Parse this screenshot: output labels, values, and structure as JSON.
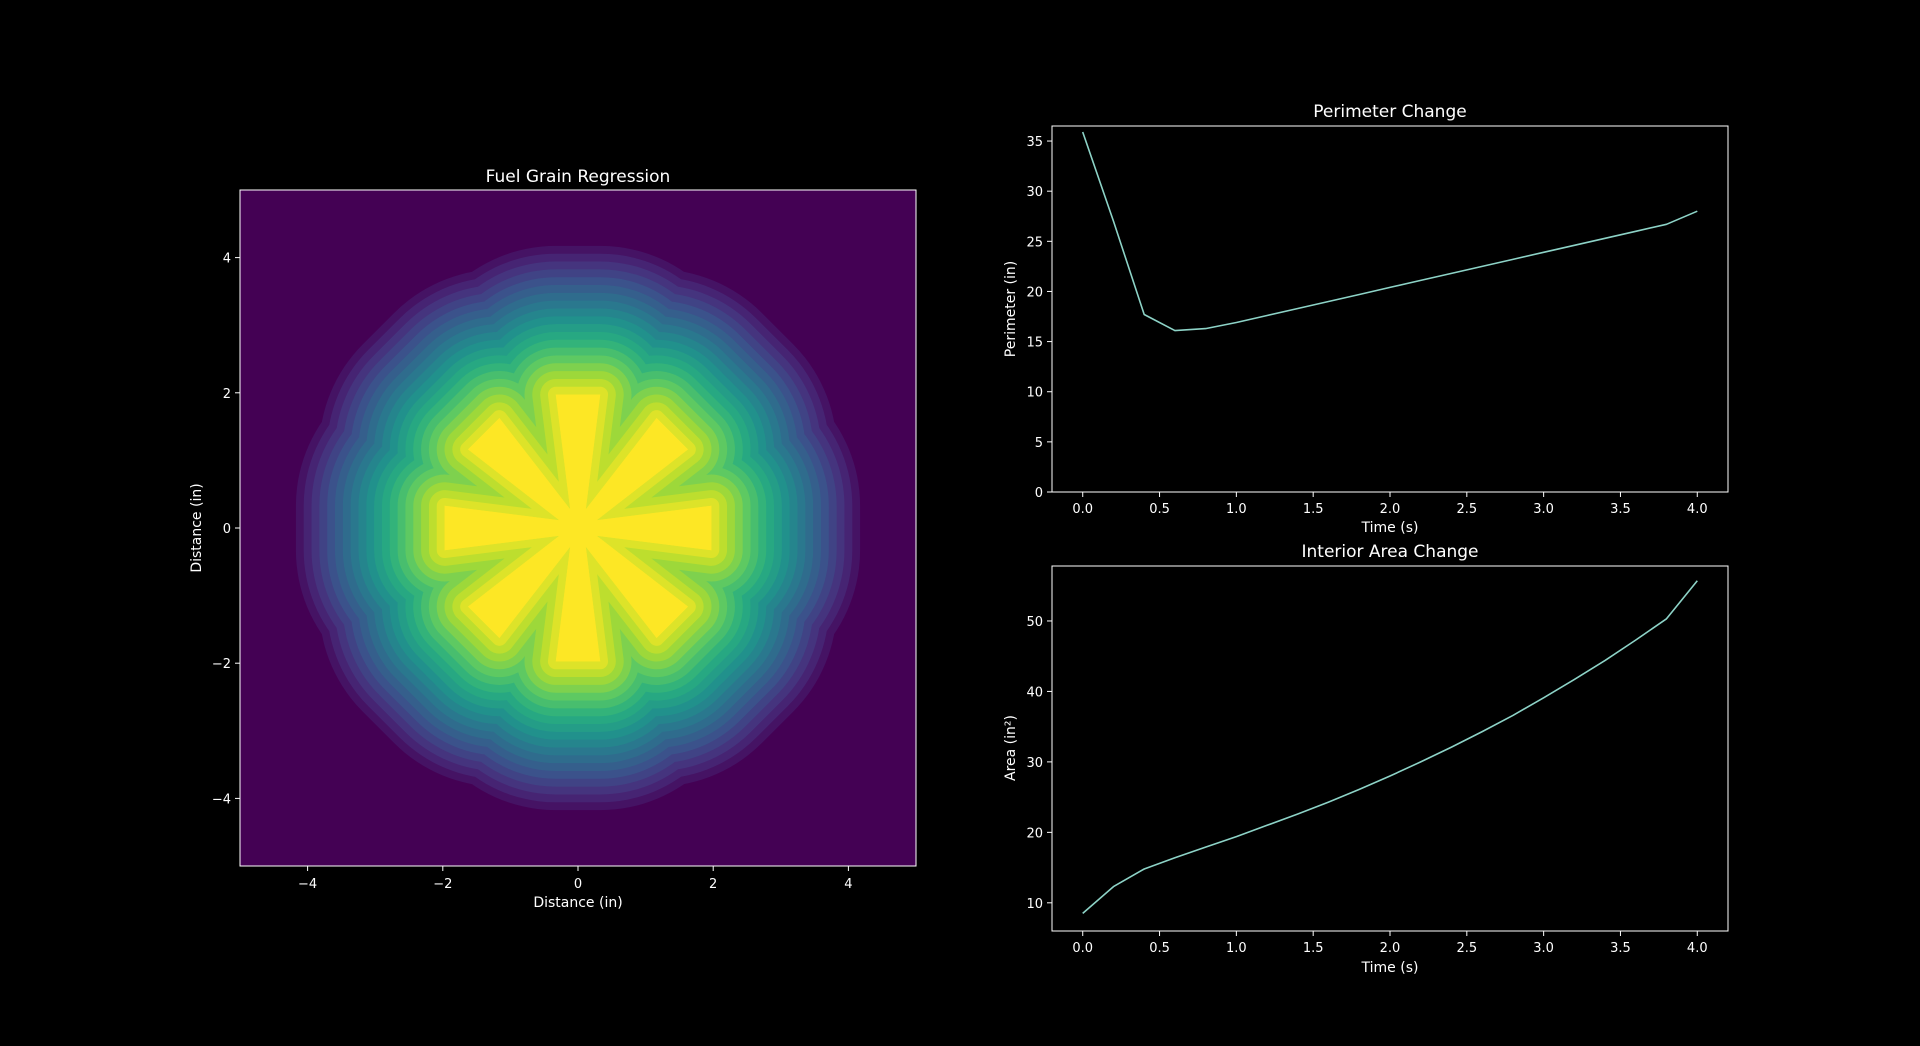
{
  "figure": {
    "background": "#000000",
    "foreground": "#ffffff",
    "line_color": "#8dd3c7"
  },
  "chart_data": [
    {
      "type": "heatmap",
      "title": "Fuel Grain Regression",
      "xlabel": "Distance (in)",
      "ylabel": "Distance (in)",
      "xlim": [
        -5,
        5
      ],
      "ylim": [
        -5,
        5
      ],
      "xticks": [
        -4,
        -2,
        0,
        2,
        4
      ],
      "yticks": [
        -4,
        -2,
        0,
        2,
        4
      ],
      "tick_labels_x": [
        "−4",
        "−2",
        "0",
        "2",
        "4"
      ],
      "tick_labels_y": [
        "−4",
        "−2",
        "0",
        "2",
        "4"
      ],
      "grid": false,
      "colormap": "viridis",
      "colormap_stops": [
        "#440154",
        "#472d7b",
        "#3b528b",
        "#2c728e",
        "#21918c",
        "#28ae80",
        "#5ec962",
        "#addc30",
        "#fde725"
      ],
      "grain": {
        "port_shape": "8-point star",
        "star_points": 8,
        "star_tip_radius": 2.0,
        "star_slot_depth_radius": 0.3,
        "burn_time_s": 4.0,
        "outer_burn_radius": 4.2,
        "contour_levels": 20
      }
    },
    {
      "type": "line",
      "title": "Perimeter Change",
      "xlabel": "Time (s)",
      "ylabel": "Perimeter (in)",
      "xlim": [
        -0.2,
        4.2
      ],
      "ylim": [
        0,
        36.5
      ],
      "xticks": [
        0.0,
        0.5,
        1.0,
        1.5,
        2.0,
        2.5,
        3.0,
        3.5,
        4.0
      ],
      "tick_labels_x": [
        "0.0",
        "0.5",
        "1.0",
        "1.5",
        "2.0",
        "2.5",
        "3.0",
        "3.5",
        "4.0"
      ],
      "yticks": [
        0,
        5,
        10,
        15,
        20,
        25,
        30,
        35
      ],
      "tick_labels_y": [
        "0",
        "5",
        "10",
        "15",
        "20",
        "25",
        "30",
        "35"
      ],
      "grid": false,
      "series": [
        {
          "x": [
            0.0,
            0.2,
            0.4,
            0.6,
            0.8,
            1.0,
            1.2,
            1.4,
            1.6,
            1.8,
            2.0,
            2.2,
            2.4,
            2.6,
            2.8,
            3.0,
            3.2,
            3.4,
            3.6,
            3.8,
            4.0
          ],
          "values": [
            35.9,
            27.0,
            17.7,
            16.1,
            16.3,
            16.9,
            17.6,
            18.3,
            19.0,
            19.7,
            20.4,
            21.1,
            21.8,
            22.5,
            23.2,
            23.9,
            24.6,
            25.3,
            26.0,
            26.7,
            28.0
          ]
        }
      ]
    },
    {
      "type": "line",
      "title": "Interior Area Change",
      "xlabel": "Time (s)",
      "ylabel": "Area (in²)",
      "xlim": [
        -0.2,
        4.2
      ],
      "ylim": [
        6,
        57.8
      ],
      "xticks": [
        0.0,
        0.5,
        1.0,
        1.5,
        2.0,
        2.5,
        3.0,
        3.5,
        4.0
      ],
      "tick_labels_x": [
        "0.0",
        "0.5",
        "1.0",
        "1.5",
        "2.0",
        "2.5",
        "3.0",
        "3.5",
        "4.0"
      ],
      "yticks": [
        10,
        20,
        30,
        40,
        50
      ],
      "tick_labels_y": [
        "10",
        "20",
        "30",
        "40",
        "50"
      ],
      "grid": false,
      "series": [
        {
          "x": [
            0.0,
            0.2,
            0.4,
            0.6,
            0.8,
            1.0,
            1.2,
            1.4,
            1.6,
            1.8,
            2.0,
            2.2,
            2.4,
            2.6,
            2.8,
            3.0,
            3.2,
            3.4,
            3.6,
            3.8,
            4.0
          ],
          "values": [
            8.5,
            12.3,
            14.8,
            16.4,
            17.9,
            19.4,
            21.0,
            22.6,
            24.3,
            26.1,
            28.0,
            30.0,
            32.1,
            34.3,
            36.6,
            39.1,
            41.7,
            44.4,
            47.3,
            50.3,
            55.7
          ]
        }
      ]
    }
  ]
}
